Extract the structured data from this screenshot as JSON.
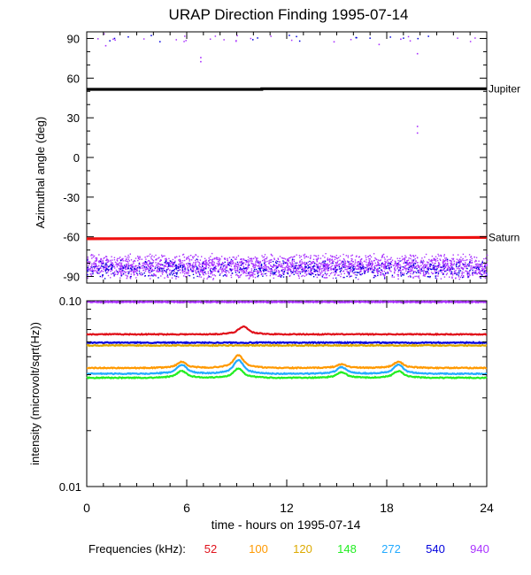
{
  "title": "URAP Direction Finding  1995-07-14",
  "colors": {
    "f52": "#e0101a",
    "f100": "#ff9900",
    "f120": "#ddaa00",
    "f148": "#22ee22",
    "f272": "#22aaff",
    "f540": "#0000dd",
    "f940": "#aa33ff",
    "jupiter": "#000000",
    "saturn": "#ee1111"
  },
  "legend": {
    "label": "Frequencies (kHz):",
    "items": [
      {
        "text": "52",
        "color": "#e0101a"
      },
      {
        "text": "100",
        "color": "#ff9900"
      },
      {
        "text": "120",
        "color": "#ddaa00"
      },
      {
        "text": "148",
        "color": "#22ee22"
      },
      {
        "text": "272",
        "color": "#22aaff"
      },
      {
        "text": "540",
        "color": "#0000dd"
      },
      {
        "text": "940",
        "color": "#aa33ff"
      }
    ]
  },
  "chart_data": [
    {
      "type": "scatter",
      "ylabel": "Azimuthal angle (deg)",
      "xlim": [
        0,
        24
      ],
      "ylim": [
        -95,
        95
      ],
      "yticks": [
        "90",
        "60",
        "30",
        "0",
        "-30",
        "-60",
        "-90"
      ],
      "ytick_values": [
        90,
        60,
        30,
        0,
        -30,
        -60,
        -90
      ],
      "reference_lines": [
        {
          "name": "Jupiter",
          "x": [
            0,
            10.5,
            10.5,
            24
          ],
          "y": [
            51.5,
            51.5,
            52,
            52
          ]
        },
        {
          "name": "Saturn",
          "x": [
            0,
            24
          ],
          "y": [
            -61.5,
            -60.5
          ]
        }
      ],
      "series": [
        {
          "color_key": "f940",
          "band_y": [
            -92,
            -72
          ],
          "scattered_points": [
            [
              1.0,
              94
            ],
            [
              1.1,
              85
            ],
            [
              6.8,
              76
            ],
            [
              6.8,
              73
            ],
            [
              14.8,
              88
            ],
            [
              19.8,
              24
            ],
            [
              19.8,
              19
            ],
            [
              19.8,
              79
            ],
            [
              17.5,
              86
            ],
            [
              18.8,
              90
            ]
          ]
        },
        {
          "color_key": "f540",
          "band_y": [
            -92,
            -76
          ]
        }
      ]
    },
    {
      "type": "line",
      "ylabel": "intensity (microvolt/sqrt(Hz))",
      "xlabel": "time - hours on 1995-07-14",
      "xlim": [
        0,
        24
      ],
      "ylim": [
        0.01,
        0.1
      ],
      "yscale": "log",
      "xticks": [
        "0",
        "6",
        "12",
        "18",
        "24"
      ],
      "xtick_values": [
        0,
        6,
        12,
        18,
        24
      ],
      "yticks": [
        "0.10",
        "0.01"
      ],
      "ytick_values": [
        0.1,
        0.01
      ],
      "series": [
        {
          "freq": "940",
          "color_key": "f940",
          "level": 0.0985,
          "features": []
        },
        {
          "freq": "52",
          "color_key": "f52",
          "level": 0.066,
          "features": [
            {
              "x": 9.4,
              "peak": 0.071
            }
          ]
        },
        {
          "freq": "540",
          "color_key": "f540",
          "level": 0.0595,
          "features": []
        },
        {
          "freq": "120",
          "color_key": "f120",
          "level": 0.0575,
          "features": []
        },
        {
          "freq": "100",
          "color_key": "f100",
          "level": 0.0435,
          "features": [
            {
              "x": 5.7,
              "peak": 0.046
            },
            {
              "x": 9.1,
              "peak": 0.049
            },
            {
              "x": 15.3,
              "peak": 0.045
            },
            {
              "x": 18.7,
              "peak": 0.046
            }
          ]
        },
        {
          "freq": "272",
          "color_key": "f272",
          "level": 0.0405,
          "features": [
            {
              "x": 5.7,
              "peak": 0.044
            },
            {
              "x": 9.1,
              "peak": 0.046
            },
            {
              "x": 15.3,
              "peak": 0.043
            },
            {
              "x": 18.7,
              "peak": 0.044
            }
          ]
        },
        {
          "freq": "148",
          "color_key": "f148",
          "level": 0.0385,
          "features": [
            {
              "x": 5.7,
              "peak": 0.041
            },
            {
              "x": 9.1,
              "peak": 0.042
            },
            {
              "x": 15.3,
              "peak": 0.0405
            },
            {
              "x": 18.7,
              "peak": 0.041
            }
          ]
        }
      ]
    }
  ]
}
